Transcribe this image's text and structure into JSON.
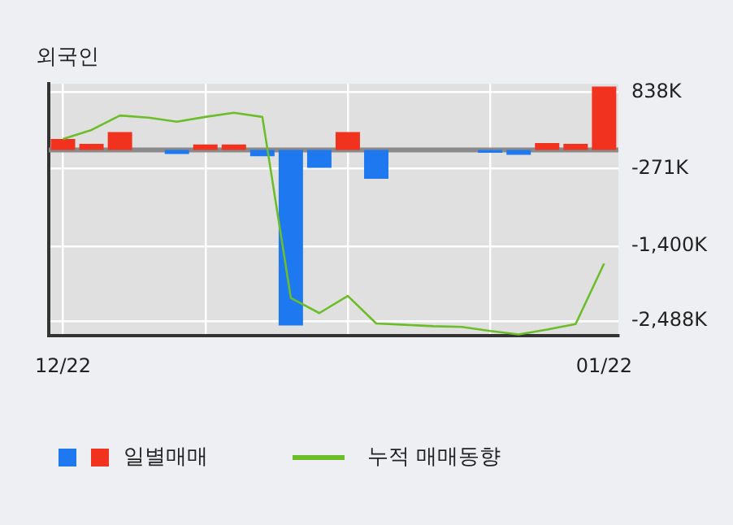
{
  "chart_data": {
    "type": "bar",
    "title": "외국인",
    "categories": [
      "12/22",
      null,
      null,
      null,
      null,
      null,
      null,
      null,
      null,
      null,
      null,
      null,
      null,
      null,
      null,
      null,
      null,
      null,
      null,
      "01/22"
    ],
    "series": [
      {
        "name": "일별매매",
        "colors": [
          "#f0321e",
          "#f0321e",
          "#f0321e",
          "#f0321e",
          "#1e78f0",
          "#f0321e",
          "#f0321e",
          "#1e78f0",
          "#1e78f0",
          "#1e78f0",
          "#f0321e",
          "#1e78f0",
          "#f0321e",
          "#f0321e",
          "#f0321e",
          "#1e78f0",
          "#1e78f0",
          "#f0321e",
          "#f0321e",
          "#f0321e"
        ],
        "values": [
          160,
          90,
          260,
          0,
          -60,
          80,
          80,
          -90,
          -2550,
          -260,
          260,
          -420,
          0,
          0,
          0,
          -40,
          -70,
          100,
          90,
          920
        ]
      },
      {
        "name": "누적 매매동향",
        "type": "line",
        "color": "#6cbd2a",
        "values": [
          160,
          290,
          500,
          470,
          410,
          480,
          540,
          480,
          -2150,
          -2370,
          -2120,
          -2520,
          -2540,
          -2560,
          -2570,
          -2630,
          -2680,
          -2610,
          -2530,
          -1650
        ]
      }
    ],
    "ylim": [
      -2700,
      960
    ],
    "yticks": [
      {
        "value": 838,
        "label": "838K"
      },
      {
        "value": -271,
        "label": "-271K"
      },
      {
        "value": -1400,
        "label": "-1,400K"
      },
      {
        "value": -2488,
        "label": "-2,488K"
      }
    ],
    "grid": true,
    "legend": "bottom",
    "marker": "none"
  }
}
